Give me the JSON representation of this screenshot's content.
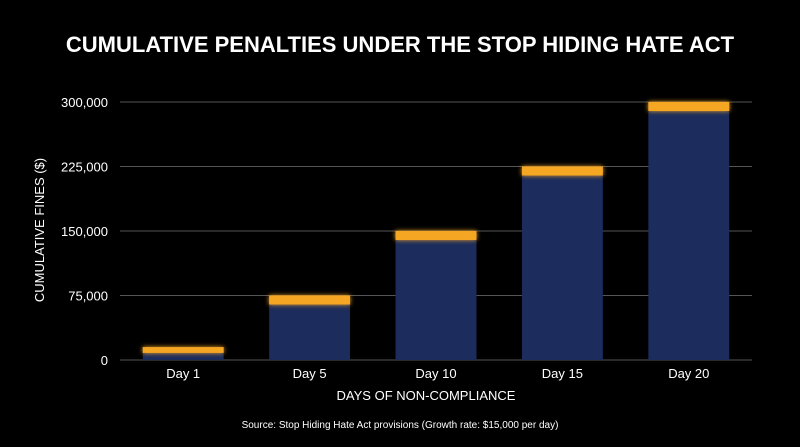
{
  "chart_data": {
    "type": "bar",
    "title": "CUMULATIVE PENALTIES UNDER THE STOP HIDING HATE ACT",
    "xlabel": "DAYS OF NON-COMPLIANCE",
    "ylabel": "CUMULATIVE FINES ($)",
    "categories": [
      "Day 1",
      "Day 5",
      "Day 10",
      "Day 15",
      "Day 20"
    ],
    "values": [
      15000,
      75000,
      150000,
      225000,
      300000
    ],
    "ylim": [
      0,
      300000
    ],
    "yticks": [
      0,
      75000,
      150000,
      225000,
      300000
    ],
    "ytick_labels": [
      "0",
      "75,000",
      "150,000",
      "225,000",
      "300,000"
    ],
    "grid": true,
    "source": "Source: Stop Hiding Hate Act provisions (Growth rate: $15,000 per day)",
    "colors": {
      "bar": "#1c2c5c",
      "bar_cap": "#f5a623",
      "grid": "#555555",
      "background": "#000000"
    }
  }
}
